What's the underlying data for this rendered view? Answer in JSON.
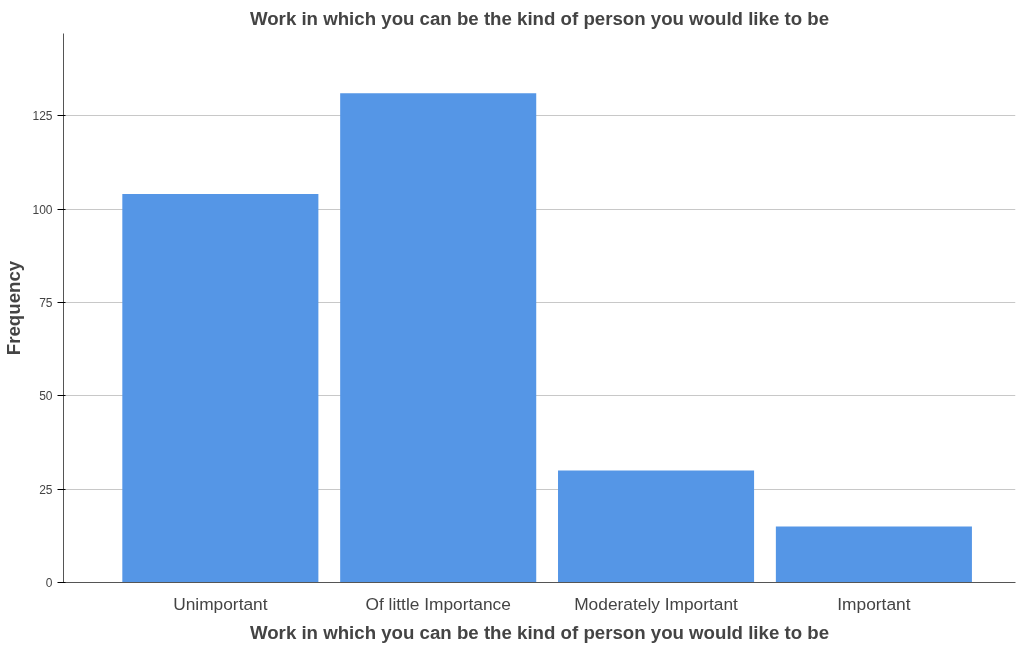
{
  "chart_data": {
    "type": "bar",
    "title": "Work in which you can be the kind of person you would like to be",
    "xlabel": "Work in which you can be the kind of person you would like to be",
    "ylabel": "Frequency",
    "categories": [
      "Unimportant",
      "Of little Importance",
      "Moderately Important",
      "Important"
    ],
    "values": [
      104,
      131,
      30,
      15
    ],
    "color": "#5596e6",
    "ylim": [
      0,
      147
    ],
    "yticks": [
      0,
      25,
      50,
      75,
      100,
      125
    ],
    "grid": "y"
  }
}
